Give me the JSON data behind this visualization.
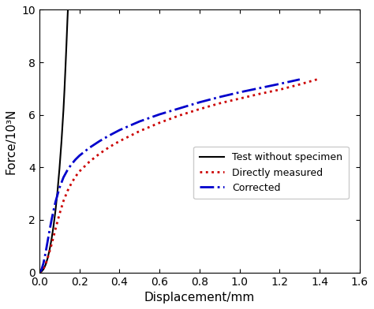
{
  "title": "",
  "xlabel": "Displacement/mm",
  "ylabel": "Force/10³N",
  "xlim": [
    0,
    1.6
  ],
  "ylim": [
    0,
    10
  ],
  "xticks": [
    0,
    0.2,
    0.4,
    0.6,
    0.8,
    1.0,
    1.2,
    1.4,
    1.6
  ],
  "yticks": [
    0,
    2,
    4,
    6,
    8,
    10
  ],
  "background_color": "#ffffff",
  "legend": [
    {
      "label": "Test without specimen",
      "color": "#000000",
      "linestyle": "solid",
      "linewidth": 1.5
    },
    {
      "label": "Directly measured",
      "color": "#cc0000",
      "linestyle": "dotted",
      "linewidth": 2.0
    },
    {
      "label": "Corrected",
      "color": "#0000cc",
      "linestyle": "dashdot",
      "linewidth": 2.0
    }
  ],
  "curve_no_specimen": {
    "x": [
      0.0,
      0.005,
      0.01,
      0.02,
      0.03,
      0.04,
      0.05,
      0.06,
      0.07,
      0.08,
      0.09,
      0.1,
      0.11,
      0.12,
      0.125,
      0.13,
      0.135,
      0.14,
      0.145
    ],
    "y": [
      0.0,
      0.01,
      0.03,
      0.12,
      0.28,
      0.52,
      0.84,
      1.25,
      1.75,
      2.35,
      3.08,
      3.95,
      4.98,
      6.2,
      6.95,
      7.8,
      8.7,
      9.65,
      10.5
    ]
  },
  "curve_directly": {
    "x": [
      0.0,
      0.01,
      0.02,
      0.03,
      0.04,
      0.05,
      0.06,
      0.07,
      0.08,
      0.1,
      0.12,
      0.14,
      0.16,
      0.18,
      0.2,
      0.25,
      0.3,
      0.35,
      0.4,
      0.5,
      0.6,
      0.7,
      0.8,
      0.9,
      1.0,
      1.1,
      1.2,
      1.3,
      1.4
    ],
    "y": [
      0.0,
      0.04,
      0.14,
      0.3,
      0.52,
      0.78,
      1.05,
      1.35,
      1.65,
      2.22,
      2.72,
      3.1,
      3.4,
      3.65,
      3.85,
      4.22,
      4.52,
      4.78,
      5.0,
      5.38,
      5.7,
      5.98,
      6.22,
      6.44,
      6.62,
      6.8,
      6.96,
      7.16,
      7.38
    ]
  },
  "curve_corrected": {
    "x": [
      0.0,
      0.01,
      0.02,
      0.03,
      0.04,
      0.05,
      0.06,
      0.07,
      0.08,
      0.1,
      0.12,
      0.14,
      0.16,
      0.18,
      0.2,
      0.25,
      0.3,
      0.35,
      0.4,
      0.5,
      0.6,
      0.7,
      0.8,
      0.9,
      1.0,
      1.1,
      1.2,
      1.3
    ],
    "y": [
      0.0,
      0.1,
      0.35,
      0.72,
      1.15,
      1.58,
      1.98,
      2.35,
      2.68,
      3.22,
      3.62,
      3.9,
      4.12,
      4.3,
      4.45,
      4.75,
      5.0,
      5.22,
      5.42,
      5.75,
      6.02,
      6.25,
      6.48,
      6.68,
      6.86,
      7.02,
      7.18,
      7.35
    ]
  }
}
